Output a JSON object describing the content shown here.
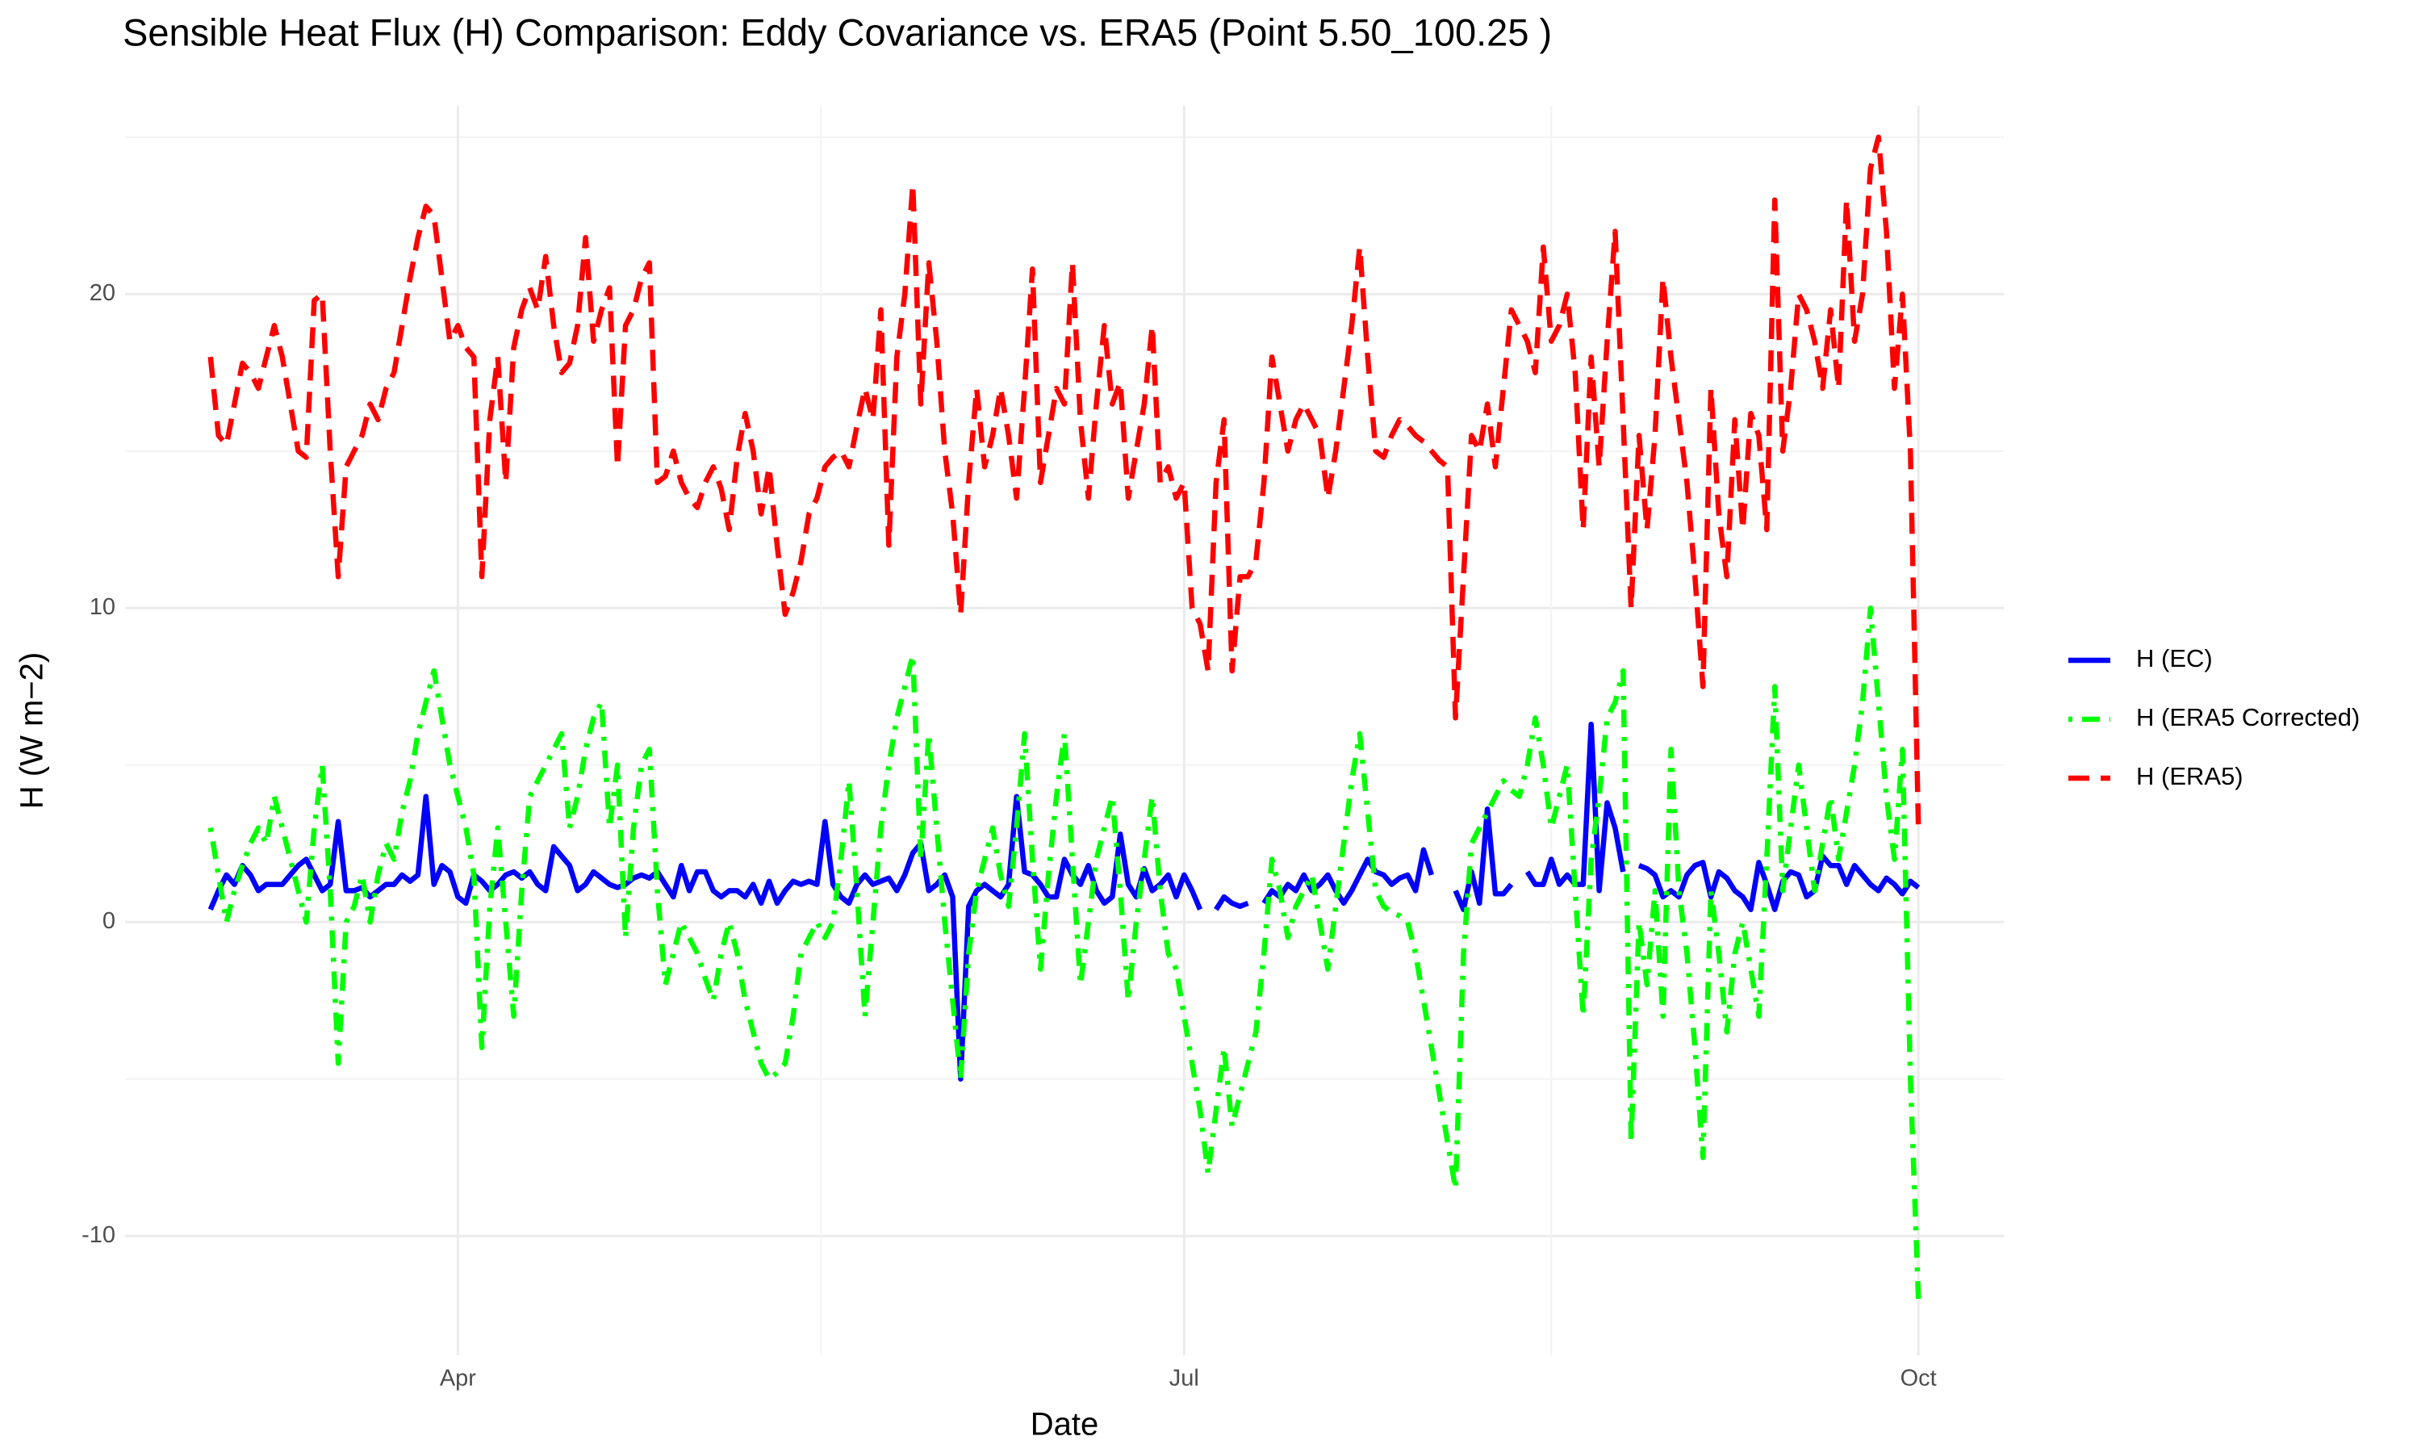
{
  "chart_data": {
    "type": "line",
    "title": "Sensible Heat Flux (H) Comparison: Eddy Covariance vs. ERA5 (Point 5.50_100.25 )",
    "x_label": "Date",
    "y_label": "H (W m−2)",
    "categories": [
      null,
      null,
      null,
      null,
      null,
      null,
      null,
      null,
      null,
      null,
      null,
      null,
      null,
      null,
      null,
      null,
      null,
      null,
      null,
      null,
      null,
      null,
      null,
      null,
      null,
      null,
      null,
      null,
      null,
      null,
      null,
      "Apr",
      null,
      null,
      null,
      null,
      null,
      null,
      null,
      null,
      null,
      null,
      null,
      null,
      null,
      null,
      null,
      null,
      null,
      null,
      null,
      null,
      null,
      null,
      null,
      null,
      null,
      null,
      null,
      null,
      null,
      null,
      null,
      null,
      null,
      null,
      null,
      null,
      null,
      null,
      null,
      null,
      null,
      null,
      null,
      null,
      null,
      null,
      null,
      null,
      null,
      null,
      null,
      null,
      null,
      null,
      null,
      null,
      null,
      null,
      null,
      null,
      null,
      null,
      null,
      null,
      null,
      null,
      null,
      null,
      null,
      null,
      null,
      null,
      null,
      null,
      null,
      null,
      null,
      null,
      null,
      null,
      null,
      null,
      null,
      null,
      null,
      null,
      null,
      null,
      null,
      null,
      "Jul",
      null,
      null,
      null,
      null,
      null,
      null,
      null,
      null,
      null,
      null,
      null,
      null,
      null,
      null,
      null,
      null,
      null,
      null,
      null,
      null,
      null,
      null,
      null,
      null,
      null,
      null,
      null,
      null,
      null,
      null,
      null,
      null,
      null,
      null,
      null,
      null,
      null,
      null,
      null,
      null,
      null,
      null,
      null,
      null,
      null,
      null,
      null,
      null,
      null,
      null,
      null,
      null,
      null,
      null,
      null,
      null,
      null,
      null,
      null,
      null,
      null,
      null,
      null,
      null,
      null,
      null,
      null,
      null,
      null,
      null,
      null,
      null,
      null,
      null,
      null,
      null,
      null,
      null,
      null,
      null,
      null,
      null,
      null,
      null,
      null,
      null,
      null,
      null,
      null,
      null,
      null,
      "Oct"
    ],
    "series": [
      {
        "name": "H (EC)",
        "color": "#0000ff",
        "linestyle": "solid",
        "values": [
          0.4,
          1,
          1.5,
          1.2,
          1.8,
          1.5,
          1,
          1.2,
          1.2,
          1.2,
          1.5,
          1.8,
          2,
          1.5,
          1,
          1.2,
          3.2,
          1,
          1,
          1.1,
          0.8,
          1,
          1.2,
          1.2,
          1.5,
          1.3,
          1.5,
          4,
          1.2,
          1.8,
          1.6,
          0.8,
          0.6,
          1.5,
          1.3,
          1,
          1.2,
          1.5,
          1.6,
          1.4,
          1.6,
          1.2,
          1,
          2.4,
          2.1,
          1.8,
          1,
          1.2,
          1.6,
          1.4,
          1.2,
          1.1,
          1.2,
          1.4,
          1.5,
          1.4,
          1.6,
          1.2,
          0.8,
          1.8,
          1,
          1.6,
          1.6,
          1,
          0.8,
          1,
          1,
          0.8,
          1.2,
          0.6,
          1.3,
          0.6,
          1,
          1.3,
          1.2,
          1.3,
          1.2,
          3.2,
          1.2,
          0.8,
          0.6,
          1.2,
          1.5,
          1.2,
          1.3,
          1.4,
          1,
          1.5,
          2.2,
          2.5,
          1,
          1.2,
          1.5,
          0.8,
          -5,
          0.5,
          1,
          1.2,
          1,
          0.8,
          1.2,
          4,
          1.6,
          1.5,
          1.2,
          0.8,
          0.8,
          2,
          1.5,
          1.2,
          1.8,
          1,
          0.6,
          0.8,
          2.8,
          1.2,
          0.8,
          1.7,
          1,
          1.2,
          1.5,
          0.8,
          1.5,
          1,
          0.4,
          null,
          0.4,
          0.8,
          0.6,
          0.5,
          0.6,
          null,
          0.6,
          1,
          0.8,
          1.2,
          1,
          1.5,
          1,
          1.2,
          1.5,
          1,
          0.6,
          1,
          1.5,
          2,
          1.6,
          1.5,
          1.2,
          1.4,
          1.5,
          1,
          2.3,
          1.5,
          null,
          null,
          1,
          0.4,
          1.6,
          0.6,
          3.6,
          0.9,
          0.9,
          1.2,
          null,
          1.6,
          1.2,
          1.2,
          2,
          1.2,
          1.5,
          1.2,
          1.2,
          6.3,
          1,
          3.8,
          3,
          1.6,
          null,
          1.8,
          1.7,
          1.5,
          0.8,
          1,
          0.8,
          1.5,
          1.8,
          1.9,
          0.8,
          1.6,
          1.4,
          1,
          0.8,
          0.4,
          1.9,
          1.2,
          0.4,
          1.3,
          1.6,
          1.5,
          0.8,
          1,
          2.1,
          1.8,
          1.8,
          1.2,
          1.8,
          1.5,
          1.2,
          1,
          1.4,
          1.2,
          0.9,
          1.3,
          1.1
        ]
      },
      {
        "name": "H (ERA5 Corrected)",
        "color": "#00ff00",
        "linestyle": "dotdash",
        "values": [
          3,
          1.5,
          0,
          1,
          1.8,
          2.5,
          3,
          2.5,
          4,
          3,
          2,
          1,
          0,
          3,
          5,
          1,
          -4.5,
          0,
          0.5,
          1.5,
          0,
          1.5,
          2.5,
          2,
          3.5,
          4.5,
          6,
          7,
          8,
          6.5,
          5,
          4,
          3,
          1.5,
          -4,
          0.5,
          3,
          0,
          -3,
          1,
          4,
          4.5,
          5,
          5.5,
          6,
          3,
          4,
          5.5,
          6.5,
          7,
          3,
          5,
          -0.5,
          3,
          5,
          5.5,
          1,
          -2,
          -1,
          0,
          -0.5,
          -1,
          -1.8,
          -2.5,
          -1,
          0,
          -1,
          -2.5,
          -3.5,
          -4.5,
          -5,
          -4.8,
          -4.5,
          -3,
          -1,
          -0.5,
          0,
          -0.5,
          0,
          2,
          4.5,
          1,
          -3,
          0,
          3,
          5,
          6.5,
          7.5,
          8.5,
          2,
          6,
          3,
          0,
          -2.5,
          -5,
          -1,
          1,
          2,
          3,
          1.5,
          0.5,
          3,
          6,
          2,
          -1.5,
          1.5,
          4,
          6,
          2,
          -2,
          0,
          2,
          3,
          4,
          1,
          -2.5,
          0,
          2,
          4,
          1,
          -1,
          -1.5,
          -3,
          -4.5,
          -6,
          -8,
          -6,
          -4,
          -6.5,
          -5.5,
          -4.5,
          -3.5,
          -1,
          2,
          1,
          -0.5,
          0.5,
          1,
          1.5,
          0,
          -1.5,
          0.5,
          2.5,
          4.5,
          6,
          3.5,
          1,
          0.5,
          0.3,
          0.2,
          0,
          -1,
          -2.5,
          -4,
          -5.5,
          -7,
          -8.5,
          -1,
          2.5,
          3,
          3.5,
          4,
          4.5,
          4.2,
          4,
          5,
          6.5,
          5,
          3,
          4,
          5,
          1,
          -3,
          2,
          4,
          6.5,
          7,
          8,
          -7,
          0,
          -2,
          1,
          -3,
          5.5,
          1,
          -1,
          -4,
          -7.5,
          1,
          -1,
          -3.5,
          -1,
          0,
          -1.5,
          -3,
          2,
          7.5,
          1,
          3,
          5,
          3,
          1,
          2.5,
          4,
          2,
          3.5,
          5,
          7,
          10,
          7,
          4,
          2,
          5.5,
          -5,
          -12
        ]
      },
      {
        "name": "H (ERA5)",
        "color": "#ff0000",
        "linestyle": "dashed",
        "values": [
          18,
          15.5,
          15.2,
          16.5,
          17.8,
          17.5,
          17,
          18,
          19,
          18,
          16.5,
          15,
          14.8,
          19.8,
          20,
          15,
          11,
          14.5,
          15,
          15.5,
          16.5,
          16,
          17,
          17.5,
          19,
          20.5,
          21.8,
          22.8,
          22.5,
          20.5,
          18.5,
          19,
          18.3,
          18,
          11,
          16,
          18,
          14,
          18.3,
          19.5,
          20.2,
          19.5,
          21.2,
          19,
          17.5,
          17.8,
          19,
          21.8,
          18.5,
          19.5,
          20.2,
          14.5,
          19,
          19.5,
          20.5,
          21,
          14,
          14.2,
          15,
          14,
          13.5,
          13.2,
          14,
          14.5,
          13.8,
          12.5,
          14.8,
          16.2,
          15,
          13,
          14.5,
          12,
          9.8,
          10.5,
          11.5,
          13,
          13.5,
          14.5,
          14.8,
          15,
          14.5,
          15.8,
          17,
          16,
          19.5,
          12,
          18,
          20,
          23.5,
          16.5,
          21,
          18.5,
          15,
          13,
          9.8,
          14,
          17,
          14.5,
          15.5,
          17,
          15.5,
          13.5,
          17,
          20.8,
          14,
          15.5,
          17,
          16.5,
          21,
          16,
          13.5,
          16.5,
          19,
          16.5,
          17.2,
          13.5,
          15,
          16.5,
          19,
          14,
          14.5,
          13.5,
          14,
          10,
          9.5,
          8,
          14,
          16,
          8,
          11,
          11,
          11.5,
          14,
          18,
          16.5,
          15,
          16,
          16.5,
          16,
          15.5,
          13.5,
          15,
          17,
          19,
          21.5,
          18,
          15,
          14.8,
          15.5,
          16,
          15.8,
          15.5,
          15.3,
          15,
          14.7,
          14.5,
          6.5,
          11,
          15.5,
          15,
          16.5,
          14.5,
          17,
          19.5,
          19,
          18.5,
          17.5,
          21.5,
          18.5,
          19,
          20,
          17.5,
          12.5,
          18,
          14.5,
          18.5,
          22,
          16,
          10,
          15.5,
          12.5,
          15.5,
          20.5,
          18,
          16,
          14,
          11,
          7.5,
          17,
          13,
          11,
          16,
          12.5,
          16.2,
          15.5,
          12.5,
          23,
          15,
          17,
          20,
          19.5,
          18.5,
          17,
          19.5,
          17,
          23,
          18.5,
          20,
          24,
          25,
          22,
          17,
          20,
          15,
          3
        ]
      }
    ],
    "ylim": [
      -13.8,
      26
    ],
    "yticks": [
      -10,
      0,
      10,
      20
    ],
    "grid": true,
    "legend": "right"
  }
}
